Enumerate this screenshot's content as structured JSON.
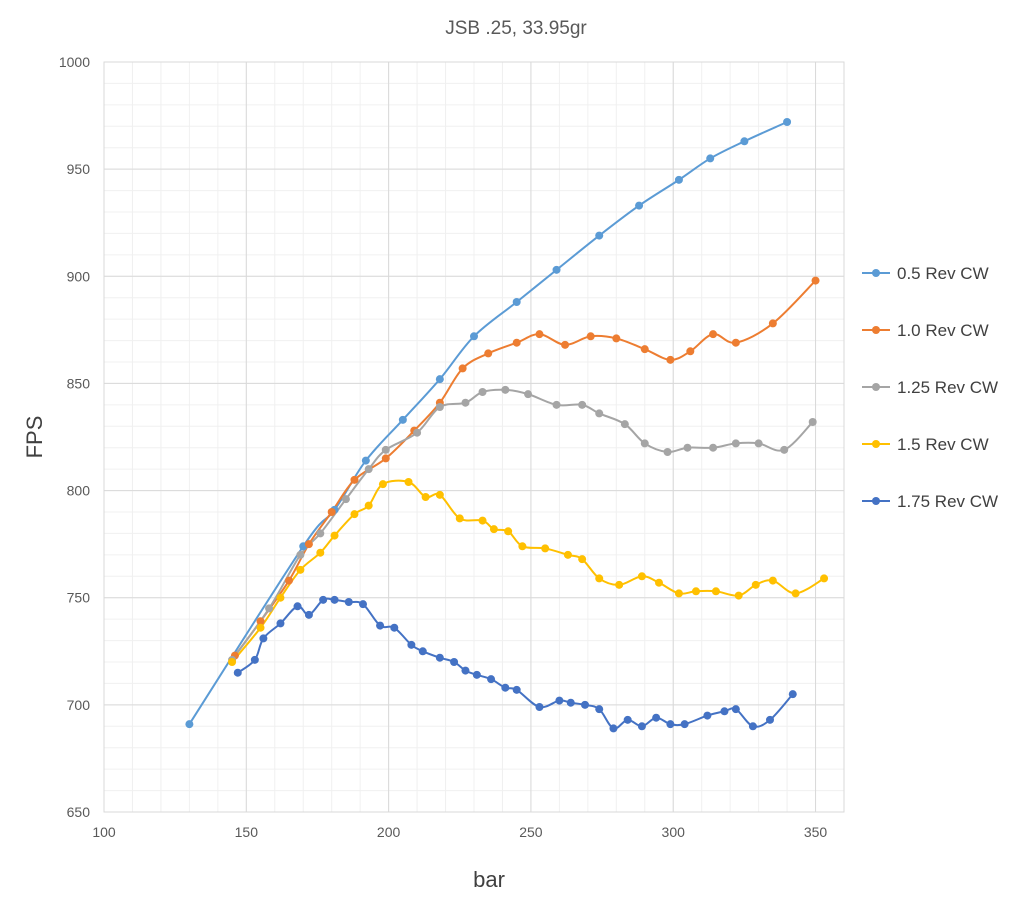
{
  "chart_data": {
    "type": "line",
    "title": "JSB .25, 33.95gr",
    "xlabel": "bar",
    "ylabel": "FPS",
    "xlim": [
      100,
      360
    ],
    "ylim": [
      650,
      1000
    ],
    "x_ticks": [
      100,
      150,
      200,
      250,
      300,
      350
    ],
    "y_ticks": [
      650,
      700,
      750,
      800,
      850,
      900,
      950,
      1000
    ],
    "grid": true,
    "minor_grid": true,
    "legend_position": "right",
    "series": [
      {
        "name": "0.5 Rev CW",
        "color": "#5B9BD5",
        "points": [
          [
            130,
            691
          ],
          [
            170,
            774
          ],
          [
            181,
            791
          ],
          [
            192,
            814
          ],
          [
            205,
            833
          ],
          [
            218,
            852
          ],
          [
            230,
            872
          ],
          [
            245,
            888
          ],
          [
            259,
            903
          ],
          [
            274,
            919
          ],
          [
            288,
            933
          ],
          [
            302,
            945
          ],
          [
            313,
            955
          ],
          [
            325,
            963
          ],
          [
            340,
            972
          ]
        ]
      },
      {
        "name": "1.0 Rev CW",
        "color": "#ED7D31",
        "points": [
          [
            146,
            723
          ],
          [
            155,
            739
          ],
          [
            165,
            758
          ],
          [
            172,
            775
          ],
          [
            180,
            790
          ],
          [
            188,
            805
          ],
          [
            199,
            815
          ],
          [
            209,
            828
          ],
          [
            218,
            841
          ],
          [
            226,
            857
          ],
          [
            235,
            864
          ],
          [
            245,
            869
          ],
          [
            253,
            873
          ],
          [
            262,
            868
          ],
          [
            271,
            872
          ],
          [
            280,
            871
          ],
          [
            290,
            866
          ],
          [
            299,
            861
          ],
          [
            306,
            865
          ],
          [
            314,
            873
          ],
          [
            322,
            869
          ],
          [
            335,
            878
          ],
          [
            350,
            898
          ]
        ]
      },
      {
        "name": "1.25 Rev CW",
        "color": "#A5A5A5",
        "points": [
          [
            145,
            721
          ],
          [
            158,
            745
          ],
          [
            169,
            770
          ],
          [
            176,
            780
          ],
          [
            185,
            796
          ],
          [
            193,
            810
          ],
          [
            199,
            819
          ],
          [
            210,
            827
          ],
          [
            218,
            839
          ],
          [
            227,
            841
          ],
          [
            233,
            846
          ],
          [
            241,
            847
          ],
          [
            249,
            845
          ],
          [
            259,
            840
          ],
          [
            268,
            840
          ],
          [
            274,
            836
          ],
          [
            283,
            831
          ],
          [
            290,
            822
          ],
          [
            298,
            818
          ],
          [
            305,
            820
          ],
          [
            314,
            820
          ],
          [
            322,
            822
          ],
          [
            330,
            822
          ],
          [
            339,
            819
          ],
          [
            349,
            832
          ]
        ]
      },
      {
        "name": "1.5 Rev CW",
        "color": "#FFC000",
        "points": [
          [
            145,
            720
          ],
          [
            155,
            736
          ],
          [
            162,
            750
          ],
          [
            169,
            763
          ],
          [
            176,
            771
          ],
          [
            181,
            779
          ],
          [
            188,
            789
          ],
          [
            193,
            793
          ],
          [
            198,
            803
          ],
          [
            207,
            804
          ],
          [
            213,
            797
          ],
          [
            218,
            798
          ],
          [
            225,
            787
          ],
          [
            233,
            786
          ],
          [
            237,
            782
          ],
          [
            242,
            781
          ],
          [
            247,
            774
          ],
          [
            255,
            773
          ],
          [
            263,
            770
          ],
          [
            268,
            768
          ],
          [
            274,
            759
          ],
          [
            281,
            756
          ],
          [
            289,
            760
          ],
          [
            295,
            757
          ],
          [
            302,
            752
          ],
          [
            308,
            753
          ],
          [
            315,
            753
          ],
          [
            323,
            751
          ],
          [
            329,
            756
          ],
          [
            335,
            758
          ],
          [
            343,
            752
          ],
          [
            353,
            759
          ]
        ]
      },
      {
        "name": "1.75 Rev CW",
        "color": "#4472C4",
        "points": [
          [
            147,
            715
          ],
          [
            153,
            721
          ],
          [
            156,
            731
          ],
          [
            162,
            738
          ],
          [
            168,
            746
          ],
          [
            172,
            742
          ],
          [
            177,
            749
          ],
          [
            181,
            749
          ],
          [
            186,
            748
          ],
          [
            191,
            747
          ],
          [
            197,
            737
          ],
          [
            202,
            736
          ],
          [
            208,
            728
          ],
          [
            212,
            725
          ],
          [
            218,
            722
          ],
          [
            223,
            720
          ],
          [
            227,
            716
          ],
          [
            231,
            714
          ],
          [
            236,
            712
          ],
          [
            241,
            708
          ],
          [
            245,
            707
          ],
          [
            253,
            699
          ],
          [
            260,
            702
          ],
          [
            264,
            701
          ],
          [
            269,
            700
          ],
          [
            274,
            698
          ],
          [
            279,
            689
          ],
          [
            284,
            693
          ],
          [
            289,
            690
          ],
          [
            294,
            694
          ],
          [
            299,
            691
          ],
          [
            304,
            691
          ],
          [
            312,
            695
          ],
          [
            318,
            697
          ],
          [
            322,
            698
          ],
          [
            328,
            690
          ],
          [
            334,
            693
          ],
          [
            342,
            705
          ]
        ]
      }
    ]
  }
}
